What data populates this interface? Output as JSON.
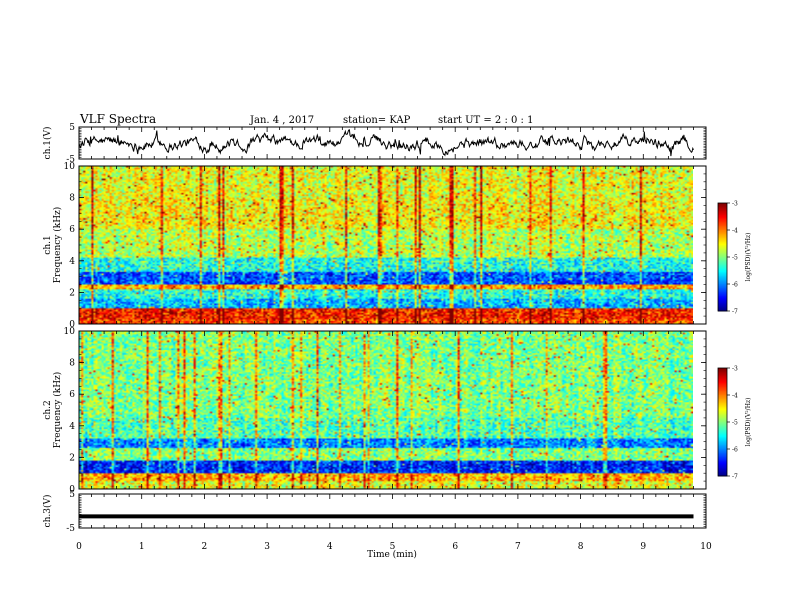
{
  "header": {
    "title": "VLF Spectra",
    "date": "Jan. 4 , 2017",
    "station": "station= KAP",
    "start": "start UT = 2 : 0 : 1"
  },
  "chart_data": [
    {
      "type": "line",
      "name": "waveform-ch1",
      "ylabel": "ch.1(V)",
      "ylim": [
        -5,
        5
      ],
      "yticks": [
        "5",
        "-5"
      ],
      "xlim": [
        0,
        10
      ],
      "trace_style": "noisy",
      "trace_center": 0.0,
      "trace_amp": 1.6
    },
    {
      "type": "heatmap",
      "name": "spectrogram-ch1",
      "ylabel": "ch.1 Frequency (kHz)",
      "ylim": [
        0,
        10
      ],
      "yticks": [
        "0",
        "2",
        "4",
        "6",
        "8",
        "10"
      ],
      "xlim": [
        0,
        9.8
      ],
      "colorbar": {
        "label": "log(PSD)(V²/Hz)",
        "range": [
          -7,
          -3
        ],
        "ticks": [
          "-3",
          "-4",
          "-5",
          "-6",
          "-7"
        ]
      },
      "bands": [
        {
          "from": 0.0,
          "to": 0.3,
          "level": -3.8
        },
        {
          "from": 0.3,
          "to": 1.0,
          "level": -3.6
        },
        {
          "from": 1.0,
          "to": 1.6,
          "level": -5.8
        },
        {
          "from": 1.6,
          "to": 2.2,
          "level": -5.4
        },
        {
          "from": 2.2,
          "to": 2.5,
          "level": -4.2
        },
        {
          "from": 2.5,
          "to": 3.3,
          "level": -6.2
        },
        {
          "from": 3.3,
          "to": 4.2,
          "level": -5.4
        },
        {
          "from": 4.2,
          "to": 6.0,
          "level": -4.8
        },
        {
          "from": 6.0,
          "to": 8.0,
          "level": -4.5
        },
        {
          "from": 8.0,
          "to": 10.0,
          "level": -4.6
        }
      ]
    },
    {
      "type": "heatmap",
      "name": "spectrogram-ch2",
      "ylabel": "ch.2 Frequency (kHz)",
      "ylim": [
        0,
        10
      ],
      "yticks": [
        "0",
        "2",
        "4",
        "6",
        "8",
        "10"
      ],
      "xlim": [
        0,
        9.8
      ],
      "colorbar": {
        "label": "log(PSD)(V²/Hz)",
        "range": [
          -7,
          -3
        ],
        "ticks": [
          "-3",
          "-4",
          "-5",
          "-6",
          "-7"
        ]
      },
      "bands": [
        {
          "from": 0.0,
          "to": 0.5,
          "level": -4.6
        },
        {
          "from": 0.5,
          "to": 1.0,
          "level": -4.2
        },
        {
          "from": 1.0,
          "to": 1.8,
          "level": -6.4
        },
        {
          "from": 1.8,
          "to": 2.6,
          "level": -5.0
        },
        {
          "from": 2.6,
          "to": 3.2,
          "level": -6.0
        },
        {
          "from": 3.2,
          "to": 4.5,
          "level": -5.2
        },
        {
          "from": 4.5,
          "to": 10.0,
          "level": -5.0
        }
      ]
    },
    {
      "type": "line",
      "name": "waveform-ch3",
      "ylabel": "ch.3(V)",
      "ylim": [
        -5,
        5
      ],
      "yticks": [
        "5",
        "-5"
      ],
      "xlim": [
        0,
        10
      ],
      "trace_style": "flat",
      "trace_center": -1.6,
      "trace_amp": 0.25
    }
  ],
  "x_axis": {
    "label": "Time (min)",
    "range": [
      0,
      10
    ],
    "ticks": [
      "0",
      "1",
      "2",
      "3",
      "4",
      "5",
      "6",
      "7",
      "8",
      "9",
      "10"
    ]
  }
}
